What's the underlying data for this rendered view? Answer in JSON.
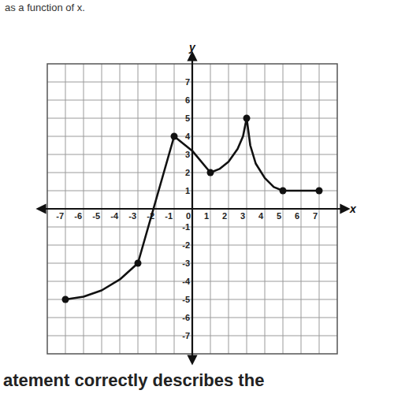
{
  "chart_data": {
    "type": "line",
    "header_text": "as a function of x.",
    "footer_text": "atement correctly describes the",
    "x_label": "x",
    "y_label": "y",
    "xlim": [
      -8,
      8
    ],
    "ylim": [
      -8,
      8
    ],
    "xticks": [
      -7,
      -6,
      -5,
      -4,
      -3,
      -2,
      -1,
      0,
      1,
      2,
      3,
      4,
      5,
      6,
      7
    ],
    "yticks": [
      -7,
      -6,
      -5,
      -4,
      -3,
      -2,
      -1,
      1,
      2,
      3,
      4,
      5,
      6,
      7
    ],
    "grid": true,
    "series": [
      {
        "type": "line",
        "color": "#111111",
        "x": [
          -7,
          -6,
          -5,
          -4,
          -3,
          -1,
          0,
          1,
          1.5,
          2,
          2.5,
          2.8,
          3,
          3.2,
          3.5,
          4,
          4.5,
          5,
          6,
          7
        ],
        "values": [
          -5,
          -4.85,
          -4.5,
          -3.9,
          -3,
          4,
          3.2,
          2,
          2.2,
          2.6,
          3.3,
          4,
          5,
          3.5,
          2.5,
          1.7,
          1.2,
          1,
          1,
          1
        ]
      },
      {
        "type": "scatter",
        "marker": "circle",
        "color": "#111111",
        "x": [
          -7,
          -3,
          -1,
          1,
          3,
          5,
          7
        ],
        "values": [
          -5,
          -3,
          4,
          2,
          5,
          1,
          1
        ]
      }
    ]
  }
}
